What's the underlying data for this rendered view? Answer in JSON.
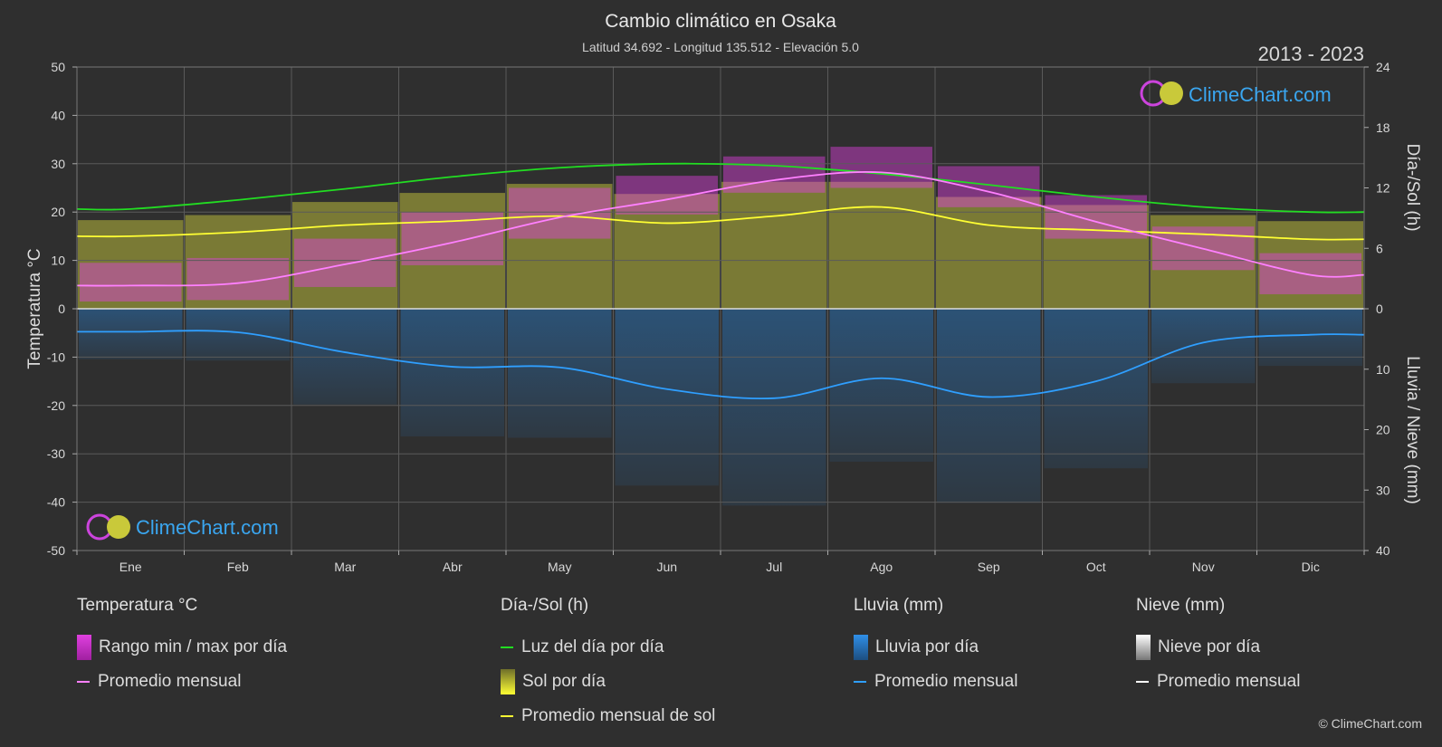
{
  "header": {
    "title": "Cambio climático en Osaka",
    "subtitle": "Latitud 34.692 - Longitud 135.512 - Elevación 5.0",
    "period": "2013 - 2023"
  },
  "brand": {
    "name": "ClimeChart.com",
    "copyright": "© ClimeChart.com"
  },
  "colors": {
    "background": "#2f2f2f",
    "temp_range": "#e040e0",
    "temp_avg": "#ff80ff",
    "daylight": "#22dd22",
    "sunshine": "#b8b83a",
    "sunshine_avg": "#ffff33",
    "rain": "#2f7fc8",
    "rain_avg": "#2f9fff",
    "snow_avg": "#ffffff"
  },
  "legend": {
    "temperature": {
      "title": "Temperatura °C",
      "range": "Rango min / max por día",
      "avg": "Promedio mensual"
    },
    "sun": {
      "title": "Día-/Sol (h)",
      "daylight": "Luz del día por día",
      "sunshine": "Sol por día",
      "sunshine_avg": "Promedio mensual de sol"
    },
    "rain": {
      "title": "Lluvia (mm)",
      "rain": "Lluvia por día",
      "avg": "Promedio mensual"
    },
    "snow": {
      "title": "Nieve (mm)",
      "snow": "Nieve por día",
      "avg": "Promedio mensual"
    }
  },
  "chart_data": {
    "type": "line",
    "categories": [
      "Ene",
      "Feb",
      "Mar",
      "Abr",
      "May",
      "Jun",
      "Jul",
      "Ago",
      "Sep",
      "Oct",
      "Nov",
      "Dic"
    ],
    "y_left": {
      "label": "Temperatura °C",
      "range": [
        -50,
        50
      ],
      "ticks": [
        50,
        40,
        30,
        20,
        10,
        0,
        -10,
        -20,
        -30,
        -40,
        -50
      ]
    },
    "y_right_top": {
      "label": "Día-/Sol (h)",
      "range": [
        0,
        24
      ],
      "ticks": [
        24,
        18,
        12,
        6,
        0
      ]
    },
    "y_right_bottom": {
      "label": "Lluvia / Nieve (mm)",
      "range": [
        0,
        40
      ],
      "ticks": [
        0,
        10,
        20,
        30,
        40
      ]
    },
    "grid": true,
    "series": [
      {
        "name": "Luz del día por día",
        "axis": "sun_h",
        "values": [
          9.9,
          10.8,
          11.9,
          13.1,
          14.0,
          14.4,
          14.2,
          13.4,
          12.3,
          11.1,
          10.1,
          9.6
        ]
      },
      {
        "name": "Promedio mensual de sol",
        "axis": "sun_h",
        "values": [
          7.2,
          7.6,
          8.3,
          8.7,
          9.2,
          8.5,
          9.2,
          10.1,
          8.3,
          7.8,
          7.4,
          6.9
        ]
      },
      {
        "name": "Promedio mensual",
        "axis": "temp_c",
        "values": [
          4.8,
          5.3,
          9.2,
          13.7,
          18.9,
          22.6,
          26.6,
          28.2,
          24.2,
          18.0,
          12.4,
          7.0
        ]
      },
      {
        "name": "Promedio mensual",
        "axis": "rain_mm",
        "values": [
          3.8,
          3.9,
          7.2,
          9.6,
          9.7,
          13.3,
          14.8,
          11.5,
          14.6,
          12.0,
          5.6,
          4.3
        ]
      },
      {
        "name": "Rango min / max por día",
        "axis": "temp_c",
        "min": [
          1.5,
          1.8,
          4.5,
          9.0,
          14.5,
          19.5,
          24.0,
          25.0,
          21.0,
          14.5,
          8.0,
          3.0
        ],
        "max": [
          9.5,
          10.5,
          14.5,
          20.0,
          25.0,
          27.5,
          31.5,
          33.5,
          29.5,
          23.5,
          17.0,
          11.5
        ]
      },
      {
        "name": "Sol por día",
        "axis": "sun_h",
        "values": [
          8.8,
          9.3,
          10.6,
          11.5,
          12.4,
          11.4,
          12.6,
          12.6,
          11.1,
          10.3,
          9.3,
          8.7
        ]
      }
    ]
  }
}
